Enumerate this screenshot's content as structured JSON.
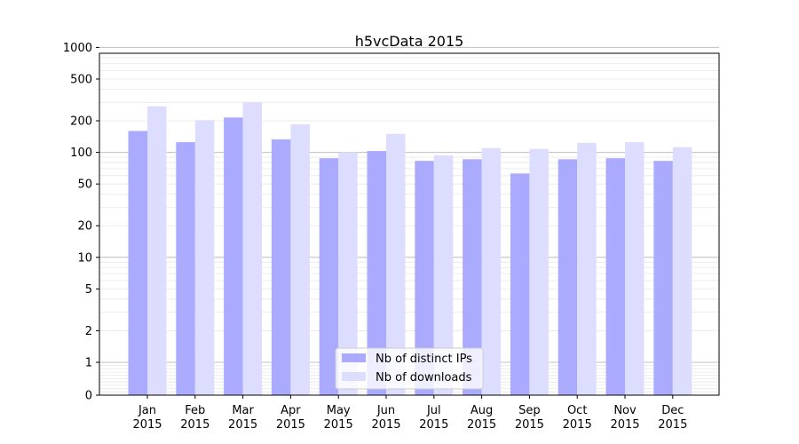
{
  "chart_data": {
    "type": "bar",
    "title": "h5vcData 2015",
    "xlabel": "",
    "ylabel": "",
    "y_scale": "symlog",
    "y_ticks": [
      0,
      1,
      2,
      5,
      10,
      20,
      50,
      100,
      200,
      500,
      1000
    ],
    "y_tick_labels": [
      "0",
      "1",
      "2",
      "5",
      "10",
      "20",
      "50",
      "100",
      "200",
      "500",
      "1000"
    ],
    "ylim": [
      0,
      1300
    ],
    "grid": true,
    "legend_position": "bottom-center",
    "categories": [
      [
        "Jan",
        "2015"
      ],
      [
        "Feb",
        "2015"
      ],
      [
        "Mar",
        "2015"
      ],
      [
        "Apr",
        "2015"
      ],
      [
        "May",
        "2015"
      ],
      [
        "Jun",
        "2015"
      ],
      [
        "Jul",
        "2015"
      ],
      [
        "Aug",
        "2015"
      ],
      [
        "Sep",
        "2015"
      ],
      [
        "Oct",
        "2015"
      ],
      [
        "Nov",
        "2015"
      ],
      [
        "Dec",
        "2015"
      ]
    ],
    "series": [
      {
        "name": "Nb of distinct IPs",
        "color": "#aaaaff",
        "values": [
          160,
          125,
          215,
          133,
          88,
          103,
          83,
          86,
          63,
          86,
          88,
          83
        ]
      },
      {
        "name": "Nb of downloads",
        "color": "#ddddff",
        "values": [
          275,
          203,
          300,
          185,
          100,
          150,
          94,
          110,
          108,
          123,
          125,
          112
        ]
      }
    ]
  }
}
